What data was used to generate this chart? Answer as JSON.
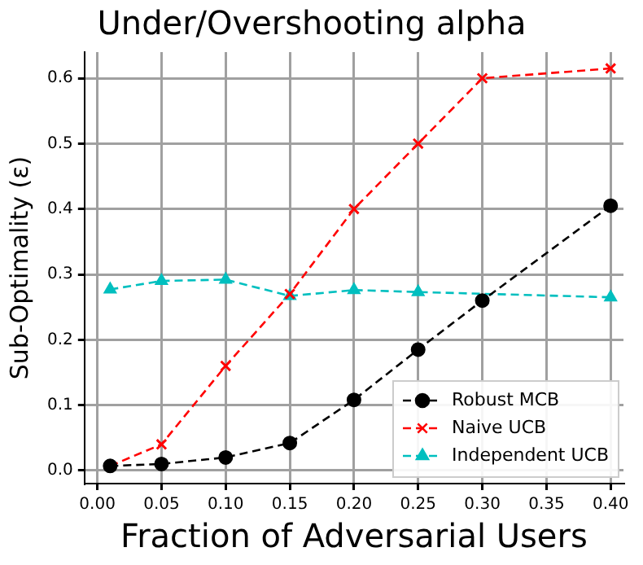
{
  "chart_data": {
    "type": "line",
    "title": "Under/Overshooting alpha",
    "xlabel": "Fraction of Adversarial Users",
    "ylabel": "Sub-Optimality (ε)",
    "x": [
      0.01,
      0.05,
      0.1,
      0.15,
      0.2,
      0.25,
      0.3,
      0.4
    ],
    "series": [
      {
        "name": "Robust MCB",
        "color": "#000000",
        "marker": "circle",
        "values": [
          0.007,
          0.01,
          0.02,
          0.042,
          0.108,
          0.185,
          0.26,
          0.405
        ]
      },
      {
        "name": "Naive UCB",
        "color": "#ff0000",
        "marker": "cross",
        "values": [
          0.007,
          0.04,
          0.16,
          0.27,
          0.4,
          0.5,
          0.6,
          0.615
        ]
      },
      {
        "name": "Independent UCB",
        "color": "#00bfbf",
        "marker": "triangle",
        "values": [
          0.277,
          0.29,
          0.292,
          0.267,
          0.276,
          0.273,
          null,
          0.265
        ]
      }
    ],
    "xlim": [
      -0.01,
      0.41
    ],
    "ylim": [
      -0.02,
      0.64
    ],
    "xticks": [
      {
        "value": 0,
        "label": "0.00"
      },
      0.05,
      {
        "value": 0.1,
        "label": "0.10"
      },
      0.15,
      {
        "value": 0.2,
        "label": "0.20"
      },
      0.25,
      {
        "value": 0.3,
        "label": "0.30"
      },
      0.35,
      {
        "value": 0.4,
        "label": "0.40"
      }
    ],
    "yticks": [
      {
        "value": 0,
        "label": "0.0"
      },
      0.1,
      0.2,
      0.3,
      0.4,
      0.5,
      0.6
    ],
    "grid": true,
    "legend": "lower right",
    "line_style": "dashed"
  }
}
